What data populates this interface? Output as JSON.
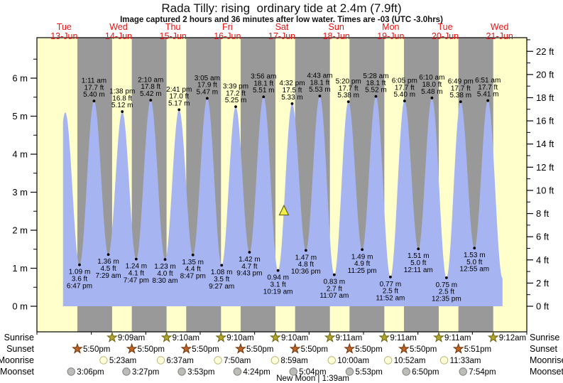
{
  "title": "Rada Tilly: rising  ordinary tide at 2.4m (7.9ft)",
  "subtitle": "Image captured 2 hours and 36 minutes after low water. Times are -03 (UTC -3.0hrs)",
  "days": [
    {
      "name": "Tue",
      "date": "13-Jun"
    },
    {
      "name": "Wed",
      "date": "14-Jun"
    },
    {
      "name": "Thu",
      "date": "15-Jun"
    },
    {
      "name": "Fri",
      "date": "16-Jun"
    },
    {
      "name": "Sat",
      "date": "17-Jun"
    },
    {
      "name": "Sun",
      "date": "18-Jun"
    },
    {
      "name": "Mon",
      "date": "19-Jun"
    },
    {
      "name": "Tue",
      "date": "20-Jun"
    },
    {
      "name": "Wed",
      "date": "21-Jun"
    }
  ],
  "colors": {
    "day_band": "#ffffcc",
    "night_band": "#999999",
    "water": "#a6b4f2",
    "day_label_red": "#ee1111",
    "axis_black": "#000000",
    "triangle_fill": "#f0ef4a",
    "triangle_stroke": "#5a5200",
    "sunrise_fill": "#b3a62c",
    "sunrise_stroke": "#6b6410",
    "sunset_fill": "#bd6426",
    "sunset_stroke": "#6e3408",
    "moonrise_fill": "#ffffd9",
    "moonrise_stroke": "#b9b978",
    "moonset_fill": "#bdbdb8",
    "moonset_stroke": "#808080"
  },
  "chart_data": {
    "type": "area",
    "x_axis": {
      "description": "hours from Tue 13-Jun 00:00 local",
      "range": [
        0,
        216
      ]
    },
    "y_axis_left": {
      "unit": "m",
      "major_ticks": [
        0,
        1,
        2,
        3,
        4,
        5,
        6
      ],
      "minor_ticks": [
        0.5,
        1.5,
        2.5,
        3.5,
        4.5,
        5.5,
        6.5
      ]
    },
    "y_axis_right": {
      "unit": "ft",
      "major_ticks": [
        0,
        2,
        4,
        6,
        8,
        10,
        12,
        14,
        16,
        18,
        20,
        22
      ],
      "minor_ticks": [
        1,
        3,
        5,
        7,
        9,
        11,
        13,
        15,
        17,
        19,
        21,
        23
      ]
    },
    "ylim_m": [
      -0.67,
      7.07
    ],
    "grid": false,
    "data_start_t": 11.5,
    "data_end_t": 205.3,
    "tide_events": [
      {
        "t": 6.3,
        "h": 1.2,
        "type": "low",
        "lines": null
      },
      {
        "t": 12.5,
        "h": 5.1,
        "type": "high",
        "lines": null
      },
      {
        "t": 18.783,
        "h": 1.09,
        "type": "low",
        "lines": [
          "1.09 m",
          "3.6 ft",
          "6:47 pm"
        ]
      },
      {
        "t": 25.183,
        "h": 5.4,
        "type": "high",
        "lines": [
          "1:11 am",
          "17.7 ft",
          "5.40 m"
        ]
      },
      {
        "t": 31.483,
        "h": 1.36,
        "type": "low",
        "lines": [
          "1.36 m",
          "4.5 ft",
          "7:29 am"
        ]
      },
      {
        "t": 37.633,
        "h": 5.12,
        "type": "high",
        "lines": [
          "1:38 pm",
          "16.8 ft",
          "5.12 m"
        ]
      },
      {
        "t": 43.783,
        "h": 1.24,
        "type": "low",
        "lines": [
          "1.24 m",
          "4.1 ft",
          "7:47 pm"
        ]
      },
      {
        "t": 50.167,
        "h": 5.42,
        "type": "high",
        "lines": [
          "2:10 am",
          "17.8 ft",
          "5.42 m"
        ]
      },
      {
        "t": 56.5,
        "h": 1.23,
        "type": "low",
        "lines": [
          "1.23 m",
          "4.0 ft",
          "8:30 am"
        ]
      },
      {
        "t": 62.683,
        "h": 5.17,
        "type": "high",
        "lines": [
          "2:41 pm",
          "17.0 ft",
          "5.17 m"
        ]
      },
      {
        "t": 68.783,
        "h": 1.35,
        "type": "low",
        "lines": [
          "1.35 m",
          "4.4 ft",
          "8:47 pm"
        ]
      },
      {
        "t": 75.083,
        "h": 5.47,
        "type": "high",
        "lines": [
          "3:05 am",
          "17.9 ft",
          "5.47 m"
        ]
      },
      {
        "t": 81.45,
        "h": 1.08,
        "type": "low",
        "lines": [
          "1.08 m",
          "3.5 ft",
          "9:27 am"
        ]
      },
      {
        "t": 87.65,
        "h": 5.25,
        "type": "high",
        "lines": [
          "3:39 pm",
          "17.2 ft",
          "5.25 m"
        ]
      },
      {
        "t": 93.717,
        "h": 1.42,
        "type": "low",
        "lines": [
          "1.42 m",
          "4.7 ft",
          "9:43 pm"
        ]
      },
      {
        "t": 99.933,
        "h": 5.51,
        "type": "high",
        "lines": [
          "3:56 am",
          "18.1 ft",
          "5.51 m"
        ]
      },
      {
        "t": 106.317,
        "h": 0.94,
        "type": "low",
        "lines": [
          "0.94 m",
          "3.1 ft",
          "10:19 am"
        ]
      },
      {
        "t": 112.533,
        "h": 5.33,
        "type": "high",
        "lines": [
          "4:32 pm",
          "17.5 ft",
          "5.33 m"
        ]
      },
      {
        "t": 118.6,
        "h": 1.47,
        "type": "low",
        "lines": [
          "1.47 m",
          "4.8 ft",
          "10:36 pm"
        ]
      },
      {
        "t": 124.717,
        "h": 5.53,
        "type": "high",
        "lines": [
          "4:43 am",
          "18.1 ft",
          "5.53 m"
        ]
      },
      {
        "t": 131.117,
        "h": 0.83,
        "type": "low",
        "lines": [
          "0.83 m",
          "2.7 ft",
          "11:07 am"
        ]
      },
      {
        "t": 137.333,
        "h": 5.38,
        "type": "high",
        "lines": [
          "5:20 pm",
          "17.7 ft",
          "5.38 m"
        ]
      },
      {
        "t": 143.417,
        "h": 1.49,
        "type": "low",
        "lines": [
          "1.49 m",
          "4.9 ft",
          "11:25 pm"
        ]
      },
      {
        "t": 149.467,
        "h": 5.52,
        "type": "high",
        "lines": [
          "5:28 am",
          "18.1 ft",
          "5.52 m"
        ]
      },
      {
        "t": 155.867,
        "h": 0.77,
        "type": "low",
        "lines": [
          "0.77 m",
          "2.5 ft",
          "11:52 am"
        ]
      },
      {
        "t": 162.083,
        "h": 5.4,
        "type": "high",
        "lines": [
          "6:05 pm",
          "17.7 ft",
          "5.40 m"
        ]
      },
      {
        "t": 168.183,
        "h": 1.51,
        "type": "low",
        "lines": [
          "1.51 m",
          "5.0 ft",
          "12:11 am"
        ]
      },
      {
        "t": 174.167,
        "h": 5.48,
        "type": "high",
        "lines": [
          "6:10 am",
          "18.0 ft",
          "5.48 m"
        ]
      },
      {
        "t": 180.583,
        "h": 0.75,
        "type": "low",
        "lines": [
          "0.75 m",
          "2.5 ft",
          "12:35 pm"
        ]
      },
      {
        "t": 186.817,
        "h": 5.38,
        "type": "high",
        "lines": [
          "6:49 pm",
          "17.7 ft",
          "5.38 m"
        ]
      },
      {
        "t": 192.917,
        "h": 1.53,
        "type": "low",
        "lines": [
          "1.53 m",
          "5.0 ft",
          "12:55 am"
        ]
      },
      {
        "t": 198.85,
        "h": 5.41,
        "type": "high",
        "lines": [
          "6:51 am",
          "17.7 ft",
          "5.41 m"
        ]
      },
      {
        "t": 205.3,
        "h": 0.74,
        "type": "low",
        "lines": null
      }
    ],
    "current_marker": {
      "t": 108.92,
      "h_m": 2.4
    }
  },
  "astro": {
    "rows": [
      {
        "key": "sunrise",
        "label": "Sunrise",
        "items": [
          {
            "t": 33.15,
            "time": "9:09am"
          },
          {
            "t": 57.167,
            "time": "9:10am"
          },
          {
            "t": 81.167,
            "time": "9:10am"
          },
          {
            "t": 105.167,
            "time": "9:10am"
          },
          {
            "t": 129.183,
            "time": "9:11am"
          },
          {
            "t": 153.183,
            "time": "9:11am"
          },
          {
            "t": 177.183,
            "time": "9:11am"
          },
          {
            "t": 201.2,
            "time": "9:12am"
          }
        ]
      },
      {
        "key": "sunset",
        "label": "Sunset",
        "items": [
          {
            "t": 17.833,
            "time": "5:50pm"
          },
          {
            "t": 41.833,
            "time": "5:50pm"
          },
          {
            "t": 65.833,
            "time": "5:50pm"
          },
          {
            "t": 89.833,
            "time": "5:50pm"
          },
          {
            "t": 113.833,
            "time": "5:50pm"
          },
          {
            "t": 137.833,
            "time": "5:50pm"
          },
          {
            "t": 161.833,
            "time": "5:50pm"
          },
          {
            "t": 185.85,
            "time": "5:51pm"
          }
        ]
      },
      {
        "key": "moonrise",
        "label": "Moonrise",
        "items": [
          {
            "t": 29.383,
            "time": "5:23am"
          },
          {
            "t": 54.617,
            "time": "6:37am"
          },
          {
            "t": 79.833,
            "time": "7:50am"
          },
          {
            "t": 104.983,
            "time": "8:59am"
          },
          {
            "t": 130.0,
            "time": "10:00am"
          },
          {
            "t": 154.867,
            "time": "10:52am"
          },
          {
            "t": 179.55,
            "time": "11:33am"
          }
        ]
      },
      {
        "key": "moonset",
        "label": "Moonset",
        "items": [
          {
            "t": 15.1,
            "time": "3:06pm"
          },
          {
            "t": 39.45,
            "time": "3:27pm"
          },
          {
            "t": 63.883,
            "time": "3:53pm"
          },
          {
            "t": 88.4,
            "time": "4:24pm"
          },
          {
            "t": 113.067,
            "time": "5:04pm"
          },
          {
            "t": 137.883,
            "time": "5:53pm"
          },
          {
            "t": 162.833,
            "time": "6:50pm"
          },
          {
            "t": 187.9,
            "time": "7:54pm"
          }
        ]
      }
    ],
    "moon_phase": "New Moon | 1:39am",
    "moon_phase_t": 121.65
  }
}
